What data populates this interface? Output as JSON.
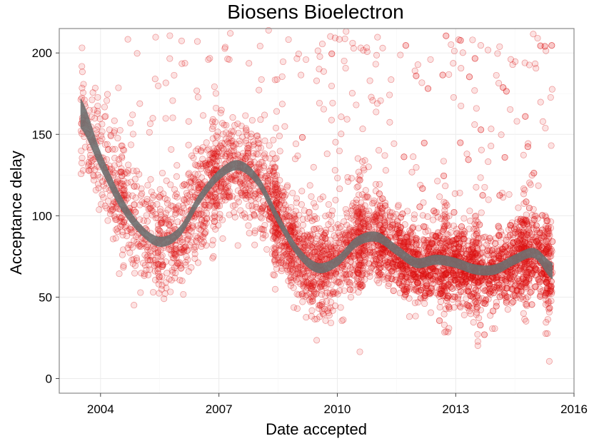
{
  "chart_data": {
    "type": "scatter",
    "title": "Biosens Bioelectron",
    "xlabel": "Date accepted",
    "ylabel": "Acceptance delay",
    "x_type": "date",
    "xlim": [
      "2002-12-15",
      "2016-01-01"
    ],
    "ylim": [
      -9,
      215
    ],
    "x_ticks": [
      "2004",
      "2007",
      "2010",
      "2013",
      "2016"
    ],
    "y_ticks": [
      0,
      50,
      100,
      150,
      200
    ],
    "grid": true,
    "legend": "none",
    "colors": {
      "points": "#e31a1c",
      "smooth": "#6f6f6f",
      "panel_border": "#888888"
    },
    "smooth": {
      "method": "loess",
      "x": [
        "2003-07-01",
        "2004-01-01",
        "2004-07-01",
        "2005-01-01",
        "2005-07-01",
        "2006-01-01",
        "2006-07-01",
        "2007-01-01",
        "2007-07-01",
        "2008-01-01",
        "2008-07-01",
        "2009-01-01",
        "2009-07-01",
        "2010-01-01",
        "2010-07-01",
        "2011-01-01",
        "2011-07-01",
        "2012-01-01",
        "2012-07-01",
        "2013-01-01",
        "2013-07-01",
        "2014-01-01",
        "2014-07-01",
        "2015-01-01",
        "2015-06-15"
      ],
      "y": [
        163,
        134,
        109,
        92,
        84,
        90,
        110,
        125,
        131,
        121,
        98,
        78,
        68,
        72,
        84,
        87,
        79,
        71,
        73,
        71,
        67,
        67,
        73,
        77,
        66
      ],
      "ci_halfwidth": [
        9,
        5,
        4,
        3,
        3,
        3,
        3,
        3,
        3,
        3,
        3,
        3,
        3,
        3,
        3,
        3,
        3,
        3,
        3,
        3,
        3,
        3,
        3,
        3,
        5
      ]
    },
    "density": {
      "segments": [
        {
          "from": "2003-07-01",
          "to": "2006-01-01",
          "points_per_year": 220,
          "center": "smooth",
          "spread": 32
        },
        {
          "from": "2006-01-01",
          "to": "2008-06-01",
          "points_per_year": 300,
          "center": "smooth",
          "spread": 30
        },
        {
          "from": "2008-06-01",
          "to": "2011-01-01",
          "points_per_year": 420,
          "center": "smooth",
          "spread": 26
        },
        {
          "from": "2011-01-01",
          "to": "2015-06-15",
          "points_per_year": 520,
          "center": "smooth",
          "spread": 24
        }
      ],
      "stripes": [
        {
          "x": "2004-07-20",
          "count": 30
        },
        {
          "x": "2006-11-20",
          "count": 45
        },
        {
          "x": "2008-06-01",
          "count": 50
        },
        {
          "x": "2010-08-01",
          "count": 60
        },
        {
          "x": "2012-10-01",
          "count": 45
        },
        {
          "x": "2013-07-15",
          "count": 40
        },
        {
          "x": "2014-10-01",
          "count": 55
        },
        {
          "x": "2015-05-01",
          "count": 50
        }
      ]
    }
  }
}
